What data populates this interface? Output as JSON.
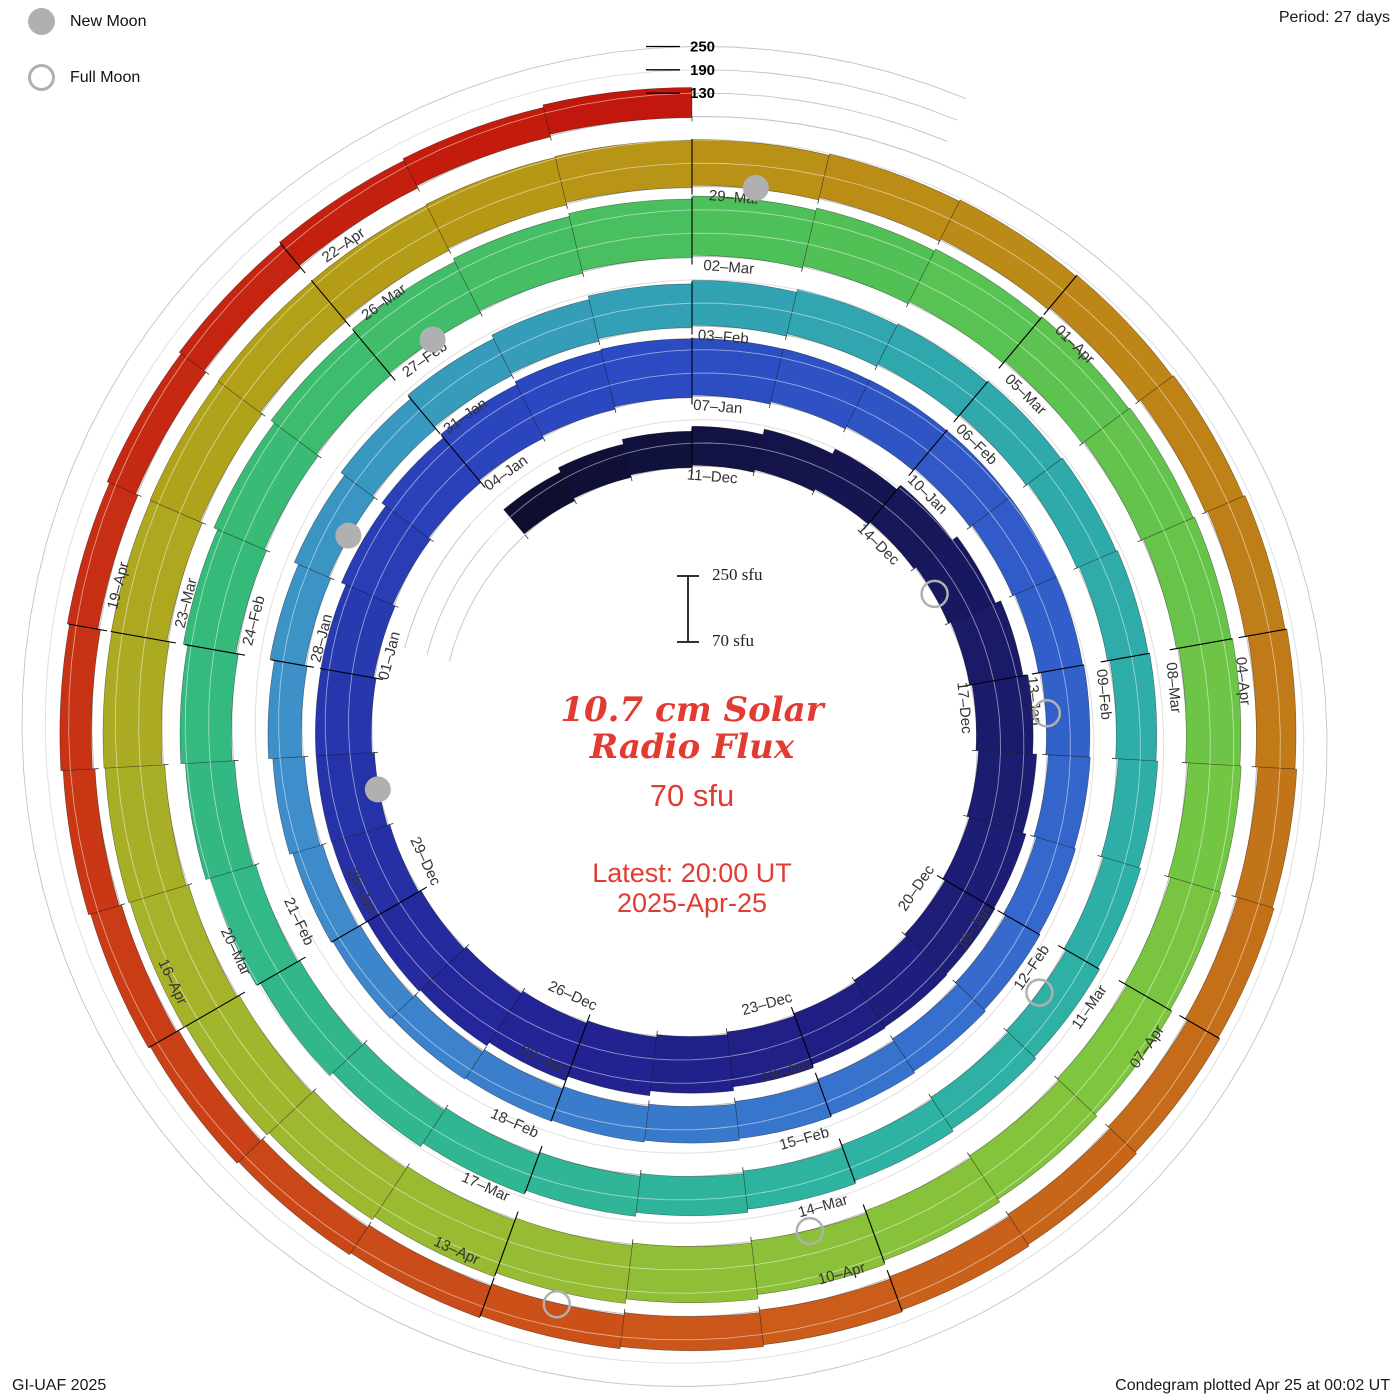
{
  "header": {
    "period_label": "Period: 27 days"
  },
  "legend": {
    "new_moon_label": "New Moon",
    "full_moon_label": "Full Moon",
    "moon_color": "#b0b0b0"
  },
  "footer": {
    "left": "GI-UAF 2025",
    "right": "Condegram plotted Apr 25 at 00:02 UT"
  },
  "center_text": {
    "title_line1": "10.7 cm Solar",
    "title_line2": "Radio Flux",
    "baseline_value": "70 sfu",
    "latest_line1": "Latest: 20:00 UT",
    "latest_line2": "2025-Apr-25",
    "accent_color": "#e23b32"
  },
  "scalebar": {
    "top_label": "250 sfu",
    "bottom_label": "70 sfu"
  },
  "axis": {
    "tick_values": [
      130,
      190,
      250
    ]
  },
  "chart_data": {
    "type": "spiral-bar",
    "description": "Condegram: daily 10.7 cm solar radio flux on a spiral; one turn = one 27-day solar rotation; bars rise outward from the 70 sfu baseline; color advances with time from dark navy (Dec) to red (Apr).",
    "period_days": 27,
    "start_date": "2024-12-08",
    "end_date": "2025-04-25",
    "flux_baseline_sfu": 70,
    "flux_max_sfu": 250,
    "radial_tick_values": [
      130,
      190,
      250
    ],
    "top_of_spiral_dates": [
      "11-Dec",
      "07-Jan",
      "03-Feb",
      "02-Mar",
      "29-Mar",
      "25-Apr"
    ],
    "date_label_first_day_index": 3,
    "date_label_step_days": 3,
    "date_labels": [
      "11–Dec",
      "14–Dec",
      "17–Dec",
      "20–Dec",
      "23–Dec",
      "26–Dec",
      "29–Dec",
      "01–Jan",
      "04–Jan",
      "07–Jan",
      "10–Jan",
      "13–Jan",
      "16–Jan",
      "19–Jan",
      "22–Jan",
      "25–Jan",
      "28–Jan",
      "31–Jan",
      "03–Feb",
      "06–Feb",
      "09–Feb",
      "12–Feb",
      "15–Feb",
      "18–Feb",
      "21–Feb",
      "24–Feb",
      "27–Feb",
      "02–Mar",
      "05–Mar",
      "08–Mar",
      "11–Mar",
      "14–Mar",
      "17–Mar",
      "20–Mar",
      "23–Mar",
      "26–Mar",
      "29–Mar",
      "01–Apr",
      "04–Apr",
      "07–Apr",
      "10–Apr",
      "13–Apr",
      "16–Apr",
      "19–Apr",
      "22–Apr"
    ],
    "daily_flux_sfu": [
      152,
      158,
      164,
      170,
      178,
      186,
      194,
      202,
      210,
      216,
      220,
      222,
      218,
      214,
      210,
      212,
      216,
      222,
      228,
      232,
      230,
      226,
      220,
      214,
      208,
      214,
      220,
      224,
      226,
      222,
      216,
      210,
      204,
      198,
      192,
      186,
      182,
      178,
      175,
      172,
      170,
      168,
      166,
      164,
      162,
      158,
      155,
      152,
      150,
      152,
      156,
      161,
      166,
      171,
      176,
      180,
      183,
      186,
      188,
      186,
      183,
      180,
      177,
      174,
      172,
      170,
      169,
      168,
      168,
      169,
      171,
      174,
      178,
      182,
      187,
      192,
      197,
      202,
      207,
      211,
      215,
      218,
      220,
      221,
      222,
      222,
      221,
      219,
      216,
      213,
      210,
      207,
      205,
      204,
      204,
      206,
      210,
      215,
      220,
      224,
      227,
      228,
      227,
      224,
      220,
      215,
      210,
      205,
      200,
      196,
      192,
      188,
      185,
      182,
      179,
      176,
      174,
      172,
      170,
      168,
      166,
      164,
      162,
      160,
      158,
      157,
      156,
      155,
      154,
      153,
      152,
      151,
      150,
      150,
      149,
      149,
      148,
      148,
      147
    ],
    "new_moon_day_indices": [
      22,
      52,
      81,
      111
    ],
    "new_moon_dates": [
      "2024-12-30",
      "2025-01-29",
      "2025-02-27",
      "2025-03-29"
    ],
    "full_moon_day_indices": [
      7,
      36,
      66,
      96,
      125
    ],
    "full_moon_dates": [
      "2024-12-15",
      "2025-01-13",
      "2025-02-12",
      "2025-03-14",
      "2025-04-12"
    ],
    "colormap_stops": [
      [
        0,
        "#0e0e30"
      ],
      [
        0.06,
        "#1a1a68"
      ],
      [
        0.13,
        "#232394"
      ],
      [
        0.2,
        "#2b46c0"
      ],
      [
        0.28,
        "#3569cd"
      ],
      [
        0.36,
        "#3f8ecb"
      ],
      [
        0.43,
        "#2fa8ad"
      ],
      [
        0.5,
        "#2eb3a2"
      ],
      [
        0.57,
        "#35ba7a"
      ],
      [
        0.62,
        "#52c155"
      ],
      [
        0.68,
        "#7fc63e"
      ],
      [
        0.74,
        "#a4b52c"
      ],
      [
        0.79,
        "#b69b15"
      ],
      [
        0.85,
        "#c07d18"
      ],
      [
        0.9,
        "#cb5a1a"
      ],
      [
        0.95,
        "#c93615"
      ],
      [
        1,
        "#c2170c"
      ]
    ]
  }
}
